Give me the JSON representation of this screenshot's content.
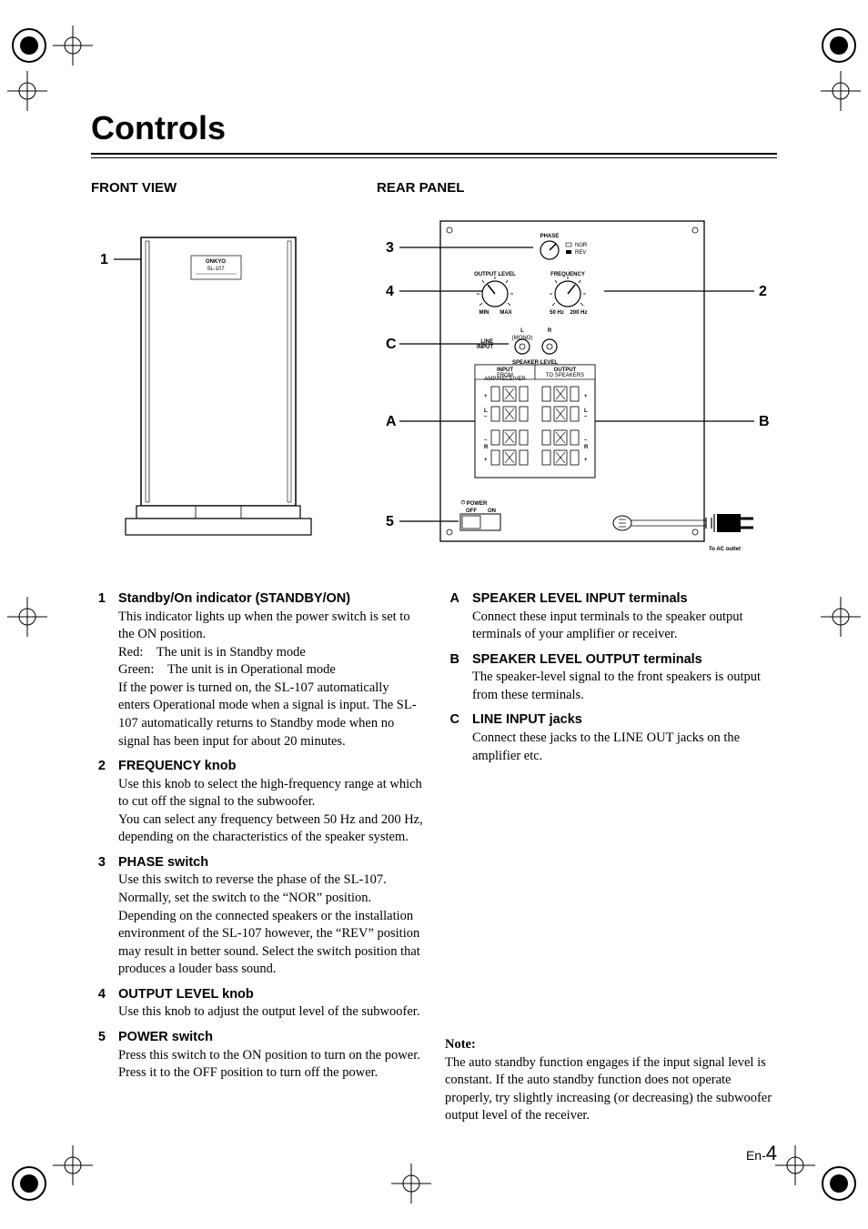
{
  "title": "Controls",
  "headings": {
    "front": "FRONT VIEW",
    "rear": "REAR PANEL"
  },
  "to_ac": "To AC outlet",
  "page_prefix": "En-",
  "page_no": "4",
  "callouts": {
    "front": [
      "1"
    ],
    "rear_left": [
      "3",
      "4",
      "C",
      "A",
      "5"
    ],
    "rear_right": [
      "2",
      "B"
    ]
  },
  "rear_labels": {
    "phase": "PHASE",
    "nor": "NOR",
    "rev": "REV",
    "output_level": "OUTPUT LEVEL",
    "frequency": "FREQUENCY",
    "min": "MIN",
    "max": "MAX",
    "f_low": "50 Hz",
    "f_high": "200 Hz",
    "line_input": "LINE INPUT",
    "l": "L",
    "r": "R",
    "mono": "(MONO)",
    "speaker_level": "SPEAKER LEVEL",
    "input": "INPUT",
    "input_sub": "FROM AMP/RECEIVER",
    "output": "OUTPUT",
    "output_sub": "TO SPEAKERS",
    "power": "POWER",
    "off": "OFF",
    "on": "ON",
    "brand": "ONKYO",
    "model": "SL-107"
  },
  "items_left": [
    {
      "num": "1",
      "hd": "Standby/On indicator (STANDBY/ON)",
      "desc": "This indicator lights up when the power switch is set to the ON position.\nRed: The unit is in Standby mode\nGreen: The unit is in Operational mode\nIf the power is turned on, the SL-107 automatically enters Operational mode when a signal is input. The SL-107 automatically returns to Standby mode when no signal has been input for about 20 minutes."
    },
    {
      "num": "2",
      "hd": "FREQUENCY knob",
      "desc": "Use this knob to select the high-frequency range at which to cut off the signal to the subwoofer.\nYou can select any frequency between 50 Hz and 200 Hz, depending on the characteristics of the speaker system."
    },
    {
      "num": "3",
      "hd": "PHASE switch",
      "desc": "Use this switch to reverse the phase of the SL-107. Normally, set the switch to the “NOR” position. Depending on the connected speakers or the installation environment of the SL-107 however, the “REV” position may result in better sound. Select the switch position that produces a louder bass sound."
    },
    {
      "num": "4",
      "hd": "OUTPUT LEVEL knob",
      "desc": "Use this knob to adjust the output level of the subwoofer."
    },
    {
      "num": "5",
      "hd": "POWER switch",
      "desc": "Press this switch to the ON position to turn on the power. Press it to the OFF position to turn off the power."
    }
  ],
  "items_right": [
    {
      "num": "A",
      "hd": "SPEAKER LEVEL INPUT terminals",
      "desc": "Connect these input terminals to the speaker output terminals of your amplifier or receiver."
    },
    {
      "num": "B",
      "hd": "SPEAKER LEVEL OUTPUT terminals",
      "desc": "The speaker-level signal to the front speakers is output from these terminals."
    },
    {
      "num": "C",
      "hd": "LINE INPUT jacks",
      "desc": "Connect these jacks to the LINE OUT jacks on the amplifier etc."
    }
  ],
  "note_hd": "Note:",
  "note_body": "The auto standby function engages if the input signal level is constant. If the auto standby function does not operate properly, try slightly increasing (or decreasing) the subwoofer output level of the receiver."
}
